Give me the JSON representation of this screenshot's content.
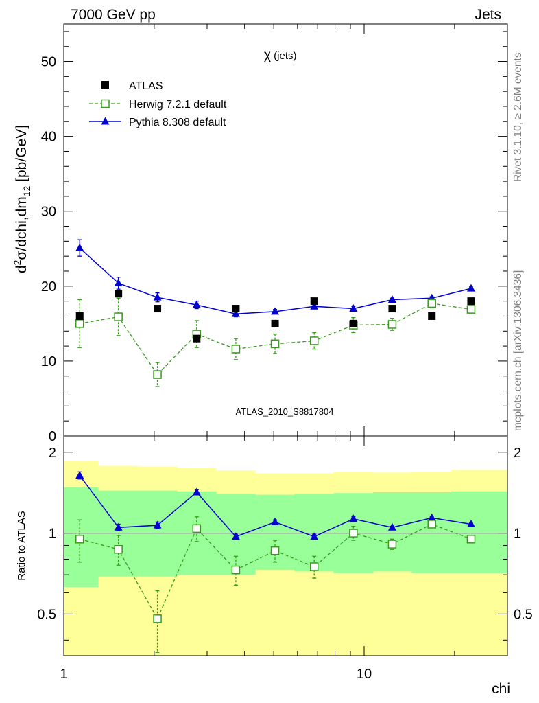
{
  "header": {
    "left": "7000 GeV pp",
    "right": "Jets"
  },
  "side_text": {
    "rivet": "Rivet 3.1.10, ≥ 2.6M events",
    "mcplots": "mcplots.cern.ch [arXiv:1306.3436]"
  },
  "chart_data": [
    {
      "type": "scatter",
      "panel": "main",
      "title": "χ (jets)",
      "ylabel": "d²σ/dchi,dm₁₂ [pb/GeV]",
      "analysis_label": "ATLAS_2010_S8817804",
      "xscale": "log",
      "xlim": [
        1,
        30
      ],
      "ylim": [
        0,
        55
      ],
      "yticks": [
        0,
        10,
        20,
        30,
        40,
        50
      ],
      "legend_position": "top-left",
      "x": [
        1.13,
        1.52,
        2.05,
        2.77,
        3.74,
        5.05,
        6.82,
        9.21,
        12.4,
        16.8,
        22.7
      ],
      "series": [
        {
          "name": "ATLAS",
          "style": "data",
          "color": "#000000",
          "values": [
            16,
            19,
            17,
            13,
            17,
            15,
            18,
            15,
            17,
            16,
            18
          ]
        },
        {
          "name": "Herwig 7.2.1 default",
          "style": "herwig",
          "color": "#3a9a1e",
          "values": [
            15,
            15.9,
            8.2,
            13.6,
            11.6,
            12.3,
            12.7,
            14.8,
            14.9,
            17.7,
            16.9
          ],
          "errors": [
            3.2,
            2.5,
            1.6,
            1.8,
            1.4,
            1.3,
            1.1,
            1.0,
            0.8,
            0.6,
            0.5
          ]
        },
        {
          "name": "Pythia 8.308 default",
          "style": "pythia",
          "color": "#0000d0",
          "values": [
            25.1,
            20.4,
            18.5,
            17.5,
            16.3,
            16.6,
            17.3,
            17.0,
            18.2,
            18.4,
            19.7
          ],
          "errors": [
            1.1,
            0.8,
            0.6,
            0.5,
            0.4,
            0.3,
            0.3,
            0.3,
            0.2,
            0.2,
            0.2
          ]
        }
      ]
    },
    {
      "type": "scatter",
      "panel": "ratio",
      "ylabel": "Ratio to ATLAS",
      "xlabel": "chi",
      "xscale": "log",
      "xlim": [
        1,
        30
      ],
      "ylim": [
        0.35,
        2.3
      ],
      "yticks": [
        0.5,
        1,
        2
      ],
      "xticks": [
        1,
        10
      ],
      "reference_line": 1,
      "bin_edges": [
        1,
        1.3,
        1.76,
        2.38,
        3.21,
        4.34,
        5.86,
        7.91,
        10.7,
        14.4,
        19.5,
        30
      ],
      "uncertainty_bands": {
        "yellow": {
          "color": "#ffff99",
          "upper": [
            1.85,
            1.78,
            1.77,
            1.75,
            1.71,
            1.67,
            1.67,
            1.69,
            1.68,
            1.69,
            1.72
          ],
          "lower": [
            0.63,
            0.69,
            0.69,
            0.7,
            0.7,
            0.73,
            0.72,
            0.71,
            0.72,
            0.71,
            0.71
          ]
        },
        "green": {
          "color": "#99ff99",
          "upper": [
            1.48,
            1.44,
            1.44,
            1.43,
            1.4,
            1.39,
            1.4,
            1.41,
            1.42,
            1.42,
            1.43
          ],
          "lower": [
            0.63,
            0.69,
            0.69,
            0.7,
            0.7,
            0.73,
            0.72,
            0.71,
            0.72,
            0.71,
            0.71
          ]
        }
      },
      "x": [
        1.13,
        1.52,
        2.05,
        2.77,
        3.74,
        5.05,
        6.82,
        9.21,
        12.4,
        16.8,
        22.7
      ],
      "series": [
        {
          "name": "Herwig 7.2.1 default",
          "style": "herwig",
          "color": "#3a9a1e",
          "values": [
            0.95,
            0.87,
            0.48,
            1.04,
            0.73,
            0.86,
            0.75,
            1.0,
            0.91,
            1.08,
            0.95
          ],
          "errors": [
            0.17,
            0.11,
            0.13,
            0.11,
            0.09,
            0.08,
            0.07,
            0.06,
            0.04,
            0.03,
            0.03
          ]
        },
        {
          "name": "Pythia 8.308 default",
          "style": "pythia",
          "color": "#0000d0",
          "values": [
            1.64,
            1.05,
            1.07,
            1.42,
            0.97,
            1.1,
            0.97,
            1.13,
            1.05,
            1.14,
            1.08
          ],
          "errors": [
            0.05,
            0.03,
            0.03,
            0.03,
            0.02,
            0.02,
            0.02,
            0.02,
            0.01,
            0.01,
            0.01
          ]
        }
      ]
    }
  ]
}
